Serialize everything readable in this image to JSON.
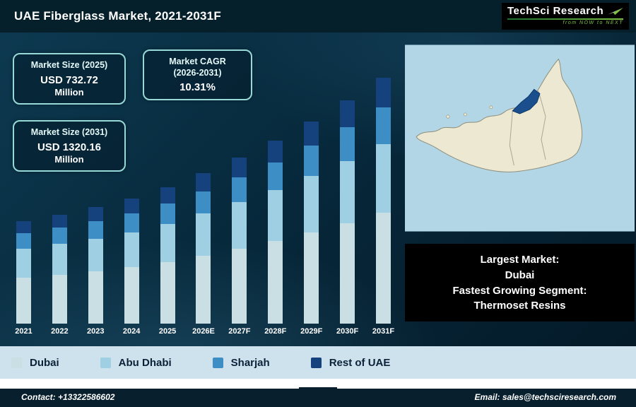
{
  "header": {
    "title": "UAE Fiberglass Market, 2021-2031F",
    "logo": {
      "name": "TechSci Research",
      "tagline": "from NOW to NEXT",
      "accent_color": "#7dc242"
    }
  },
  "stats": [
    {
      "label": "Market Size (2025)",
      "value": "USD 732.72",
      "unit": "Million"
    },
    {
      "label": "Market CAGR",
      "sublabel": "(2026-2031)",
      "value": "10.31%"
    },
    {
      "label": "Market Size (2031)",
      "value": "USD 1320.16",
      "unit": "Million"
    }
  ],
  "chart_data": {
    "type": "bar",
    "stacked": true,
    "title": "UAE Fiberglass Market, 2021-2031F",
    "unit": "USD Million",
    "categories": [
      "2021",
      "2022",
      "2023",
      "2024",
      "2025",
      "2026E",
      "2027F",
      "2028F",
      "2029F",
      "2030F",
      "2031F"
    ],
    "series": [
      {
        "name": "Dubai",
        "color": "#c9dfe4",
        "values": [
          248,
          263,
          281,
          302,
          330,
          364,
          401,
          442,
          488,
          539,
          594
        ]
      },
      {
        "name": "Abu Dhabi",
        "color": "#9fcfe3",
        "values": [
          154,
          164,
          175,
          188,
          205,
          226,
          250,
          275,
          304,
          335,
          370
        ]
      },
      {
        "name": "Sharjah",
        "color": "#3d8ec5",
        "values": [
          83,
          88,
          94,
          101,
          110,
          121,
          134,
          148,
          163,
          180,
          198
        ]
      },
      {
        "name": "Rest of UAE",
        "color": "#15417d",
        "values": [
          66,
          70,
          75,
          81,
          88,
          97,
          107,
          118,
          130,
          144,
          158
        ]
      }
    ],
    "totals_reference": {
      "2025": 732.72,
      "2031": 1320.16,
      "cagr_2026_2031": "10.31%"
    },
    "ylim": [
      0,
      1400
    ],
    "grid": false,
    "legend_position": "bottom"
  },
  "map": {
    "sea_color": "#b2d6e6",
    "land_color": "#ede8d2",
    "border_color": "#8f8f7c",
    "highlight_color": "#1b4e8c",
    "highlight_region": "Dubai"
  },
  "highlight_box": {
    "lines": [
      "Largest Market:",
      "Dubai",
      "Fastest Growing Segment:",
      "Thermoset Resins"
    ]
  },
  "footer": {
    "contact": "Contact: +13322586602",
    "email": "Email: sales@techsciresearch.com"
  }
}
